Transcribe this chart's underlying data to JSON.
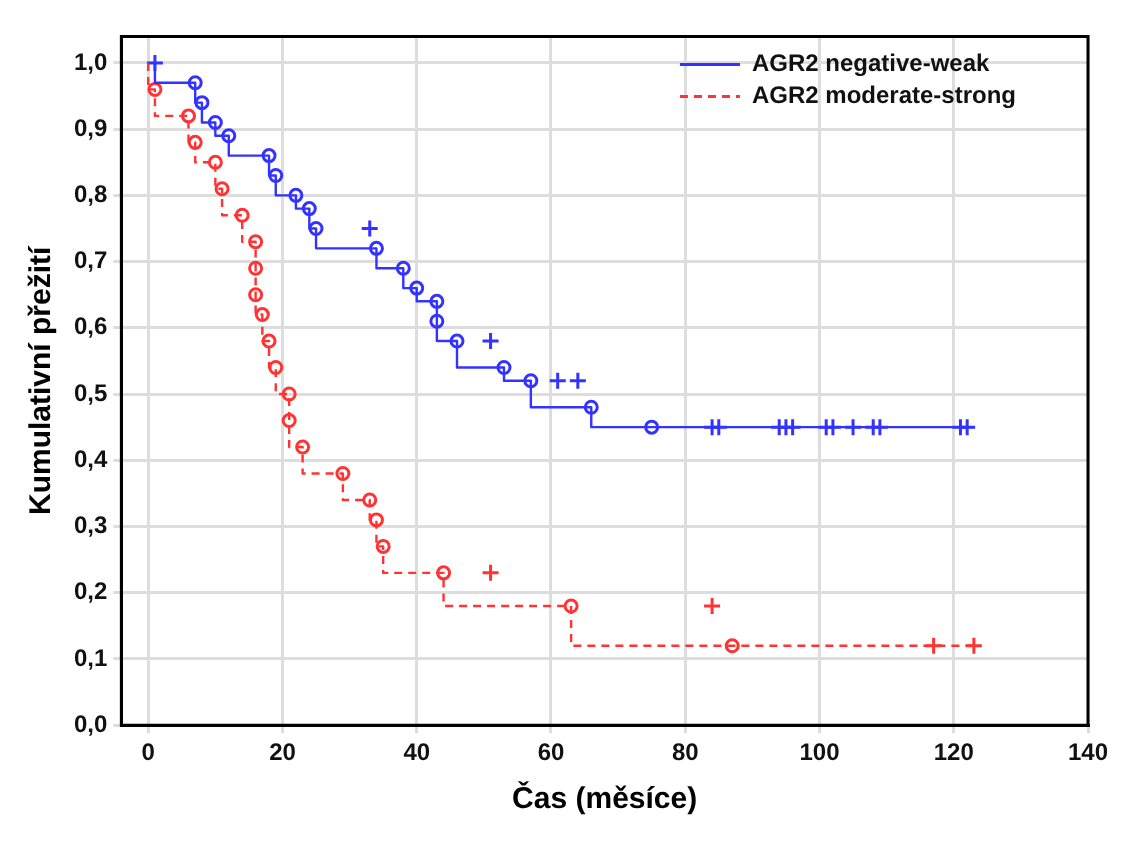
{
  "chart_data": {
    "type": "step",
    "xlabel": "Čas (měsíce)",
    "ylabel": "Kumulativní přežití",
    "xlim": [
      -4,
      140
    ],
    "xticks": [
      0,
      20,
      40,
      60,
      80,
      100,
      120,
      140
    ],
    "ylim": [
      0,
      1.04
    ],
    "yticks": [
      {
        "value": 0,
        "label": "0,0"
      },
      {
        "value": 0.1,
        "label": "0,1"
      },
      {
        "value": 0.2,
        "label": "0,2"
      },
      {
        "value": 0.3,
        "label": "0,3"
      },
      {
        "value": 0.4,
        "label": "0,4"
      },
      {
        "value": 0.5,
        "label": "0,5"
      },
      {
        "value": 0.6,
        "label": "0,6"
      },
      {
        "value": 0.7,
        "label": "0,7"
      },
      {
        "value": 0.8,
        "label": "0,8"
      },
      {
        "value": 0.9,
        "label": "0,9"
      },
      {
        "value": 1,
        "label": "1,0"
      }
    ],
    "grid": true,
    "legend": "top right",
    "series": [
      {
        "name": "AGR2 negative-weak",
        "color": "#3333ff",
        "line_style": "solid",
        "marker": "none",
        "x": [
          1,
          7,
          8,
          10,
          12,
          18,
          19,
          22,
          24,
          25,
          34,
          38,
          40,
          43,
          43,
          46,
          53,
          57,
          66,
          75,
          123
        ],
        "values": [
          1,
          0.97,
          0.94,
          0.91,
          0.89,
          0.86,
          0.83,
          0.8,
          0.78,
          0.75,
          0.72,
          0.69,
          0.66,
          0.64,
          0.61,
          0.58,
          0.54,
          0.52,
          0.48,
          0.45,
          0.45
        ]
      },
      {
        "name": "AGR2 moderate-strong",
        "color": "#ff3333",
        "line_style": "dashed",
        "marker": "none",
        "x": [
          0,
          1,
          6,
          7,
          10,
          11,
          14,
          16,
          16,
          16,
          17,
          18,
          19,
          21,
          21,
          23,
          29,
          33,
          34,
          35,
          44,
          63,
          87,
          123
        ],
        "values": [
          1,
          0.96,
          0.92,
          0.88,
          0.85,
          0.81,
          0.77,
          0.73,
          0.69,
          0.65,
          0.62,
          0.58,
          0.54,
          0.5,
          0.46,
          0.42,
          0.38,
          0.34,
          0.31,
          0.27,
          0.23,
          0.18,
          0.12,
          0.12
        ]
      },
      {
        "type": "scatter",
        "color": "#3333ff",
        "marker": "circle",
        "x": [
          7,
          8,
          10,
          12,
          18,
          19,
          22,
          24,
          25,
          34,
          38,
          40,
          43,
          43,
          46,
          53,
          57,
          66,
          75
        ],
        "values": [
          0.97,
          0.94,
          0.91,
          0.89,
          0.86,
          0.83,
          0.8,
          0.78,
          0.75,
          0.72,
          0.69,
          0.66,
          0.64,
          0.61,
          0.58,
          0.54,
          0.52,
          0.48,
          0.45
        ]
      },
      {
        "type": "scatter",
        "color": "#ff3333",
        "marker": "circle",
        "x": [
          1,
          6,
          7,
          10,
          11,
          14,
          16,
          16,
          16,
          17,
          18,
          19,
          21,
          21,
          23,
          29,
          33,
          34,
          35,
          44,
          63,
          87
        ],
        "values": [
          0.96,
          0.92,
          0.88,
          0.85,
          0.81,
          0.77,
          0.73,
          0.69,
          0.65,
          0.62,
          0.58,
          0.54,
          0.5,
          0.46,
          0.42,
          0.38,
          0.34,
          0.31,
          0.27,
          0.23,
          0.18,
          0.12
        ]
      },
      {
        "type": "scatter",
        "color": "#3333ff",
        "marker": "cross",
        "x": [
          1,
          33,
          51,
          61,
          64,
          84,
          85,
          94,
          95,
          96,
          101,
          102,
          105,
          108,
          109,
          121,
          122
        ],
        "values": [
          1,
          0.75,
          0.58,
          0.52,
          0.52,
          0.45,
          0.45,
          0.45,
          0.45,
          0.45,
          0.45,
          0.45,
          0.45,
          0.45,
          0.45,
          0.45,
          0.45
        ]
      },
      {
        "type": "scatter",
        "color": "#ff3333",
        "marker": "cross",
        "x": [
          51,
          84,
          117,
          123
        ],
        "values": [
          0.23,
          0.18,
          0.12,
          0.12
        ]
      }
    ]
  }
}
